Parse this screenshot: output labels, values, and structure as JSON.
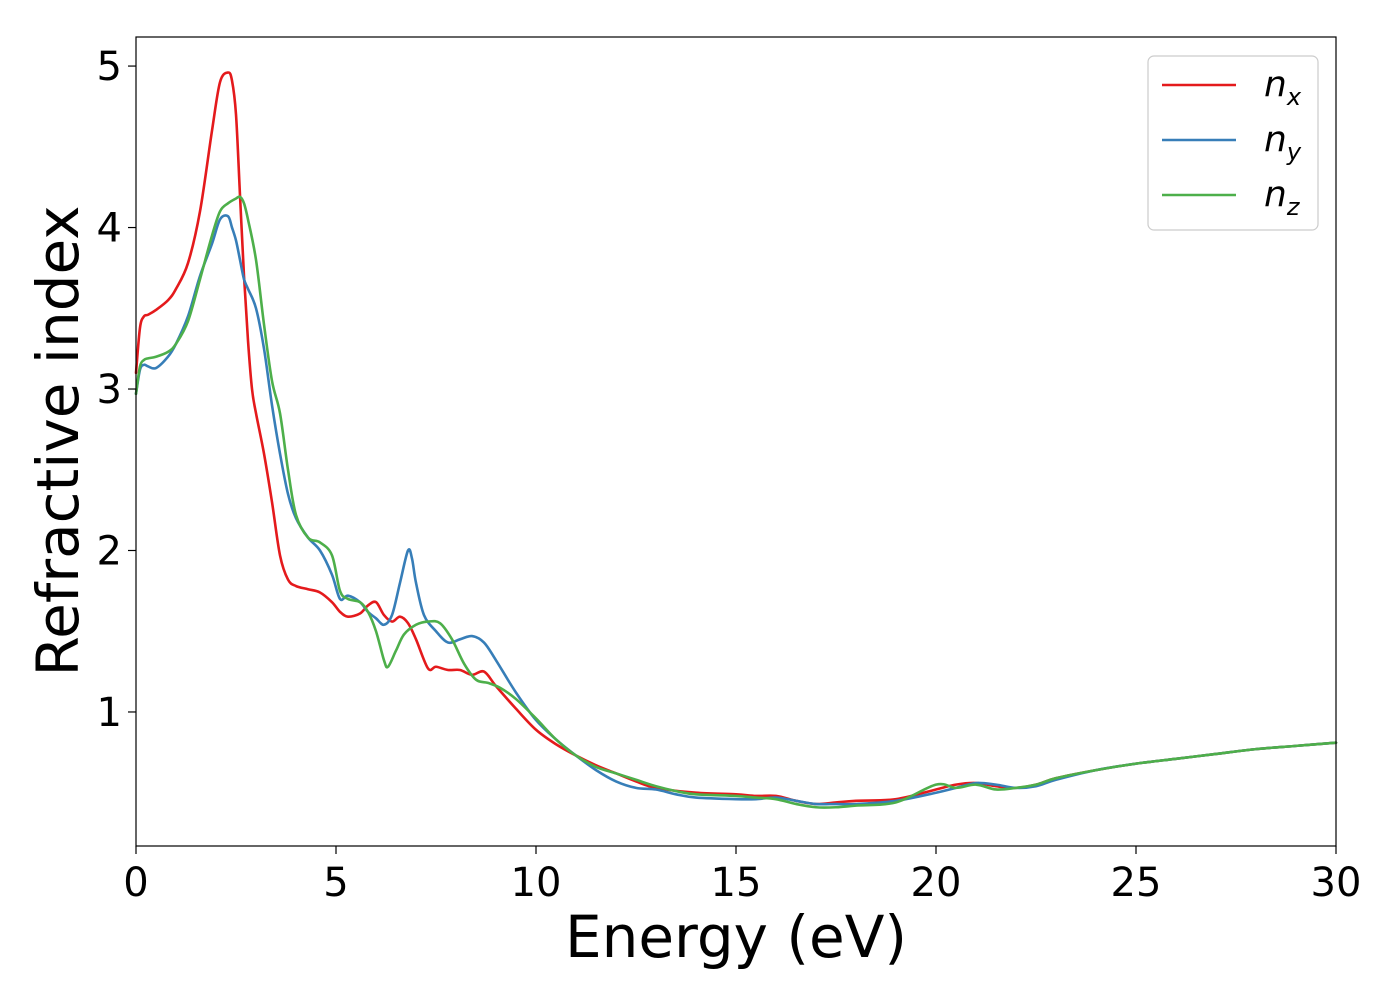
{
  "chart_data": {
    "type": "line",
    "xlabel": "Energy (eV)",
    "ylabel": "Refractive index",
    "xlim": [
      0,
      30
    ],
    "ylim": [
      0.17,
      5.18
    ],
    "xticks": [
      0,
      5,
      10,
      15,
      20,
      25,
      30
    ],
    "xtick_labels": [
      "0",
      "5",
      "10",
      "15",
      "20",
      "25",
      "30"
    ],
    "yticks": [
      1,
      2,
      3,
      4,
      5
    ],
    "ytick_labels": [
      "1",
      "2",
      "3",
      "4",
      "5"
    ],
    "grid": false,
    "legend_position": "top-right",
    "series": [
      {
        "name": "n_x",
        "label_base": "n",
        "label_sub": "x",
        "color": "#e41a1c",
        "x": [
          0,
          0.1,
          0.2,
          0.3,
          0.5,
          0.8,
          1.0,
          1.3,
          1.6,
          1.9,
          2.1,
          2.3,
          2.4,
          2.5,
          2.6,
          2.7,
          2.8,
          2.9,
          3.0,
          3.2,
          3.4,
          3.6,
          3.8,
          4.0,
          4.3,
          4.6,
          4.9,
          5.1,
          5.3,
          5.6,
          5.8,
          6.0,
          6.2,
          6.4,
          6.6,
          6.8,
          7.0,
          7.3,
          7.5,
          7.8,
          8.1,
          8.4,
          8.7,
          9.0,
          9.5,
          10.0,
          10.5,
          11.0,
          11.5,
          12.0,
          12.5,
          13.0,
          14.0,
          15.0,
          15.5,
          16.0,
          16.5,
          17.0,
          17.5,
          18.0,
          19.0,
          20.0,
          20.5,
          21.0,
          21.5,
          22.0,
          22.5,
          23.0,
          24.0,
          25.0,
          26.0,
          27.0,
          28.0,
          29.0,
          30.0
        ],
        "y": [
          3.1,
          3.38,
          3.45,
          3.46,
          3.49,
          3.55,
          3.62,
          3.78,
          4.1,
          4.6,
          4.9,
          4.96,
          4.91,
          4.7,
          4.2,
          3.7,
          3.3,
          3.0,
          2.85,
          2.6,
          2.3,
          1.97,
          1.82,
          1.78,
          1.76,
          1.74,
          1.68,
          1.62,
          1.59,
          1.61,
          1.66,
          1.68,
          1.6,
          1.56,
          1.59,
          1.55,
          1.45,
          1.27,
          1.28,
          1.26,
          1.26,
          1.23,
          1.25,
          1.16,
          1.02,
          0.89,
          0.8,
          0.73,
          0.67,
          0.62,
          0.57,
          0.53,
          0.5,
          0.49,
          0.48,
          0.48,
          0.45,
          0.43,
          0.44,
          0.45,
          0.46,
          0.52,
          0.55,
          0.56,
          0.54,
          0.53,
          0.55,
          0.59,
          0.64,
          0.68,
          0.71,
          0.74,
          0.77,
          0.79,
          0.81
        ]
      },
      {
        "name": "n_y",
        "label_base": "n",
        "label_sub": "y",
        "color": "#377eb8",
        "x": [
          0,
          0.1,
          0.2,
          0.3,
          0.5,
          0.8,
          1.0,
          1.3,
          1.6,
          1.9,
          2.1,
          2.3,
          2.4,
          2.5,
          2.6,
          2.7,
          2.8,
          3.0,
          3.2,
          3.4,
          3.6,
          3.8,
          4.0,
          4.3,
          4.6,
          4.9,
          5.1,
          5.3,
          5.6,
          5.8,
          6.0,
          6.2,
          6.4,
          6.6,
          6.8,
          6.9,
          7.0,
          7.2,
          7.5,
          7.8,
          8.1,
          8.4,
          8.7,
          9.0,
          9.5,
          10.0,
          10.5,
          11.0,
          11.5,
          12.0,
          12.5,
          13.0,
          13.5,
          14.0,
          15.0,
          15.5,
          16.0,
          16.5,
          17.0,
          17.5,
          18.0,
          19.0,
          20.0,
          20.5,
          21.0,
          21.5,
          22.0,
          22.5,
          23.0,
          24.0,
          25.0,
          26.0,
          27.0,
          28.0,
          29.0,
          30.0
        ],
        "y": [
          2.97,
          3.12,
          3.15,
          3.14,
          3.13,
          3.2,
          3.28,
          3.45,
          3.7,
          3.9,
          4.05,
          4.07,
          4.0,
          3.92,
          3.8,
          3.68,
          3.62,
          3.5,
          3.25,
          2.9,
          2.6,
          2.35,
          2.2,
          2.08,
          2.0,
          1.85,
          1.7,
          1.72,
          1.68,
          1.62,
          1.58,
          1.54,
          1.6,
          1.8,
          2.0,
          1.95,
          1.8,
          1.6,
          1.5,
          1.43,
          1.45,
          1.47,
          1.43,
          1.32,
          1.12,
          0.95,
          0.83,
          0.73,
          0.64,
          0.57,
          0.53,
          0.52,
          0.49,
          0.47,
          0.46,
          0.46,
          0.47,
          0.45,
          0.43,
          0.43,
          0.43,
          0.45,
          0.5,
          0.53,
          0.56,
          0.55,
          0.53,
          0.54,
          0.58,
          0.64,
          0.68,
          0.71,
          0.74,
          0.77,
          0.79,
          0.81
        ]
      },
      {
        "name": "n_z",
        "label_base": "n",
        "label_sub": "z",
        "color": "#4daf4a",
        "x": [
          0,
          0.1,
          0.2,
          0.3,
          0.5,
          0.8,
          1.0,
          1.3,
          1.6,
          1.9,
          2.1,
          2.3,
          2.5,
          2.6,
          2.7,
          2.8,
          3.0,
          3.2,
          3.4,
          3.6,
          3.8,
          4.0,
          4.3,
          4.6,
          4.9,
          5.1,
          5.3,
          5.6,
          5.8,
          6.0,
          6.2,
          6.3,
          6.5,
          6.7,
          7.0,
          7.3,
          7.6,
          7.9,
          8.2,
          8.5,
          8.8,
          9.1,
          9.5,
          10.0,
          10.5,
          11.0,
          11.5,
          12.0,
          12.5,
          13.0,
          13.5,
          14.0,
          15.0,
          15.5,
          16.0,
          16.5,
          17.0,
          17.5,
          18.0,
          19.0,
          20.0,
          20.5,
          21.0,
          21.5,
          22.0,
          22.5,
          23.0,
          24.0,
          25.0,
          26.0,
          27.0,
          28.0,
          29.0,
          30.0
        ],
        "y": [
          2.97,
          3.14,
          3.18,
          3.19,
          3.2,
          3.23,
          3.28,
          3.42,
          3.68,
          3.95,
          4.1,
          4.15,
          4.18,
          4.19,
          4.15,
          4.05,
          3.8,
          3.4,
          3.05,
          2.85,
          2.5,
          2.22,
          2.08,
          2.05,
          1.97,
          1.75,
          1.7,
          1.68,
          1.62,
          1.5,
          1.32,
          1.28,
          1.38,
          1.48,
          1.54,
          1.56,
          1.55,
          1.45,
          1.3,
          1.2,
          1.18,
          1.15,
          1.08,
          0.96,
          0.83,
          0.73,
          0.66,
          0.62,
          0.58,
          0.54,
          0.51,
          0.49,
          0.48,
          0.47,
          0.46,
          0.43,
          0.41,
          0.41,
          0.42,
          0.44,
          0.55,
          0.53,
          0.55,
          0.52,
          0.53,
          0.55,
          0.59,
          0.64,
          0.68,
          0.71,
          0.74,
          0.77,
          0.79,
          0.81
        ]
      }
    ]
  }
}
